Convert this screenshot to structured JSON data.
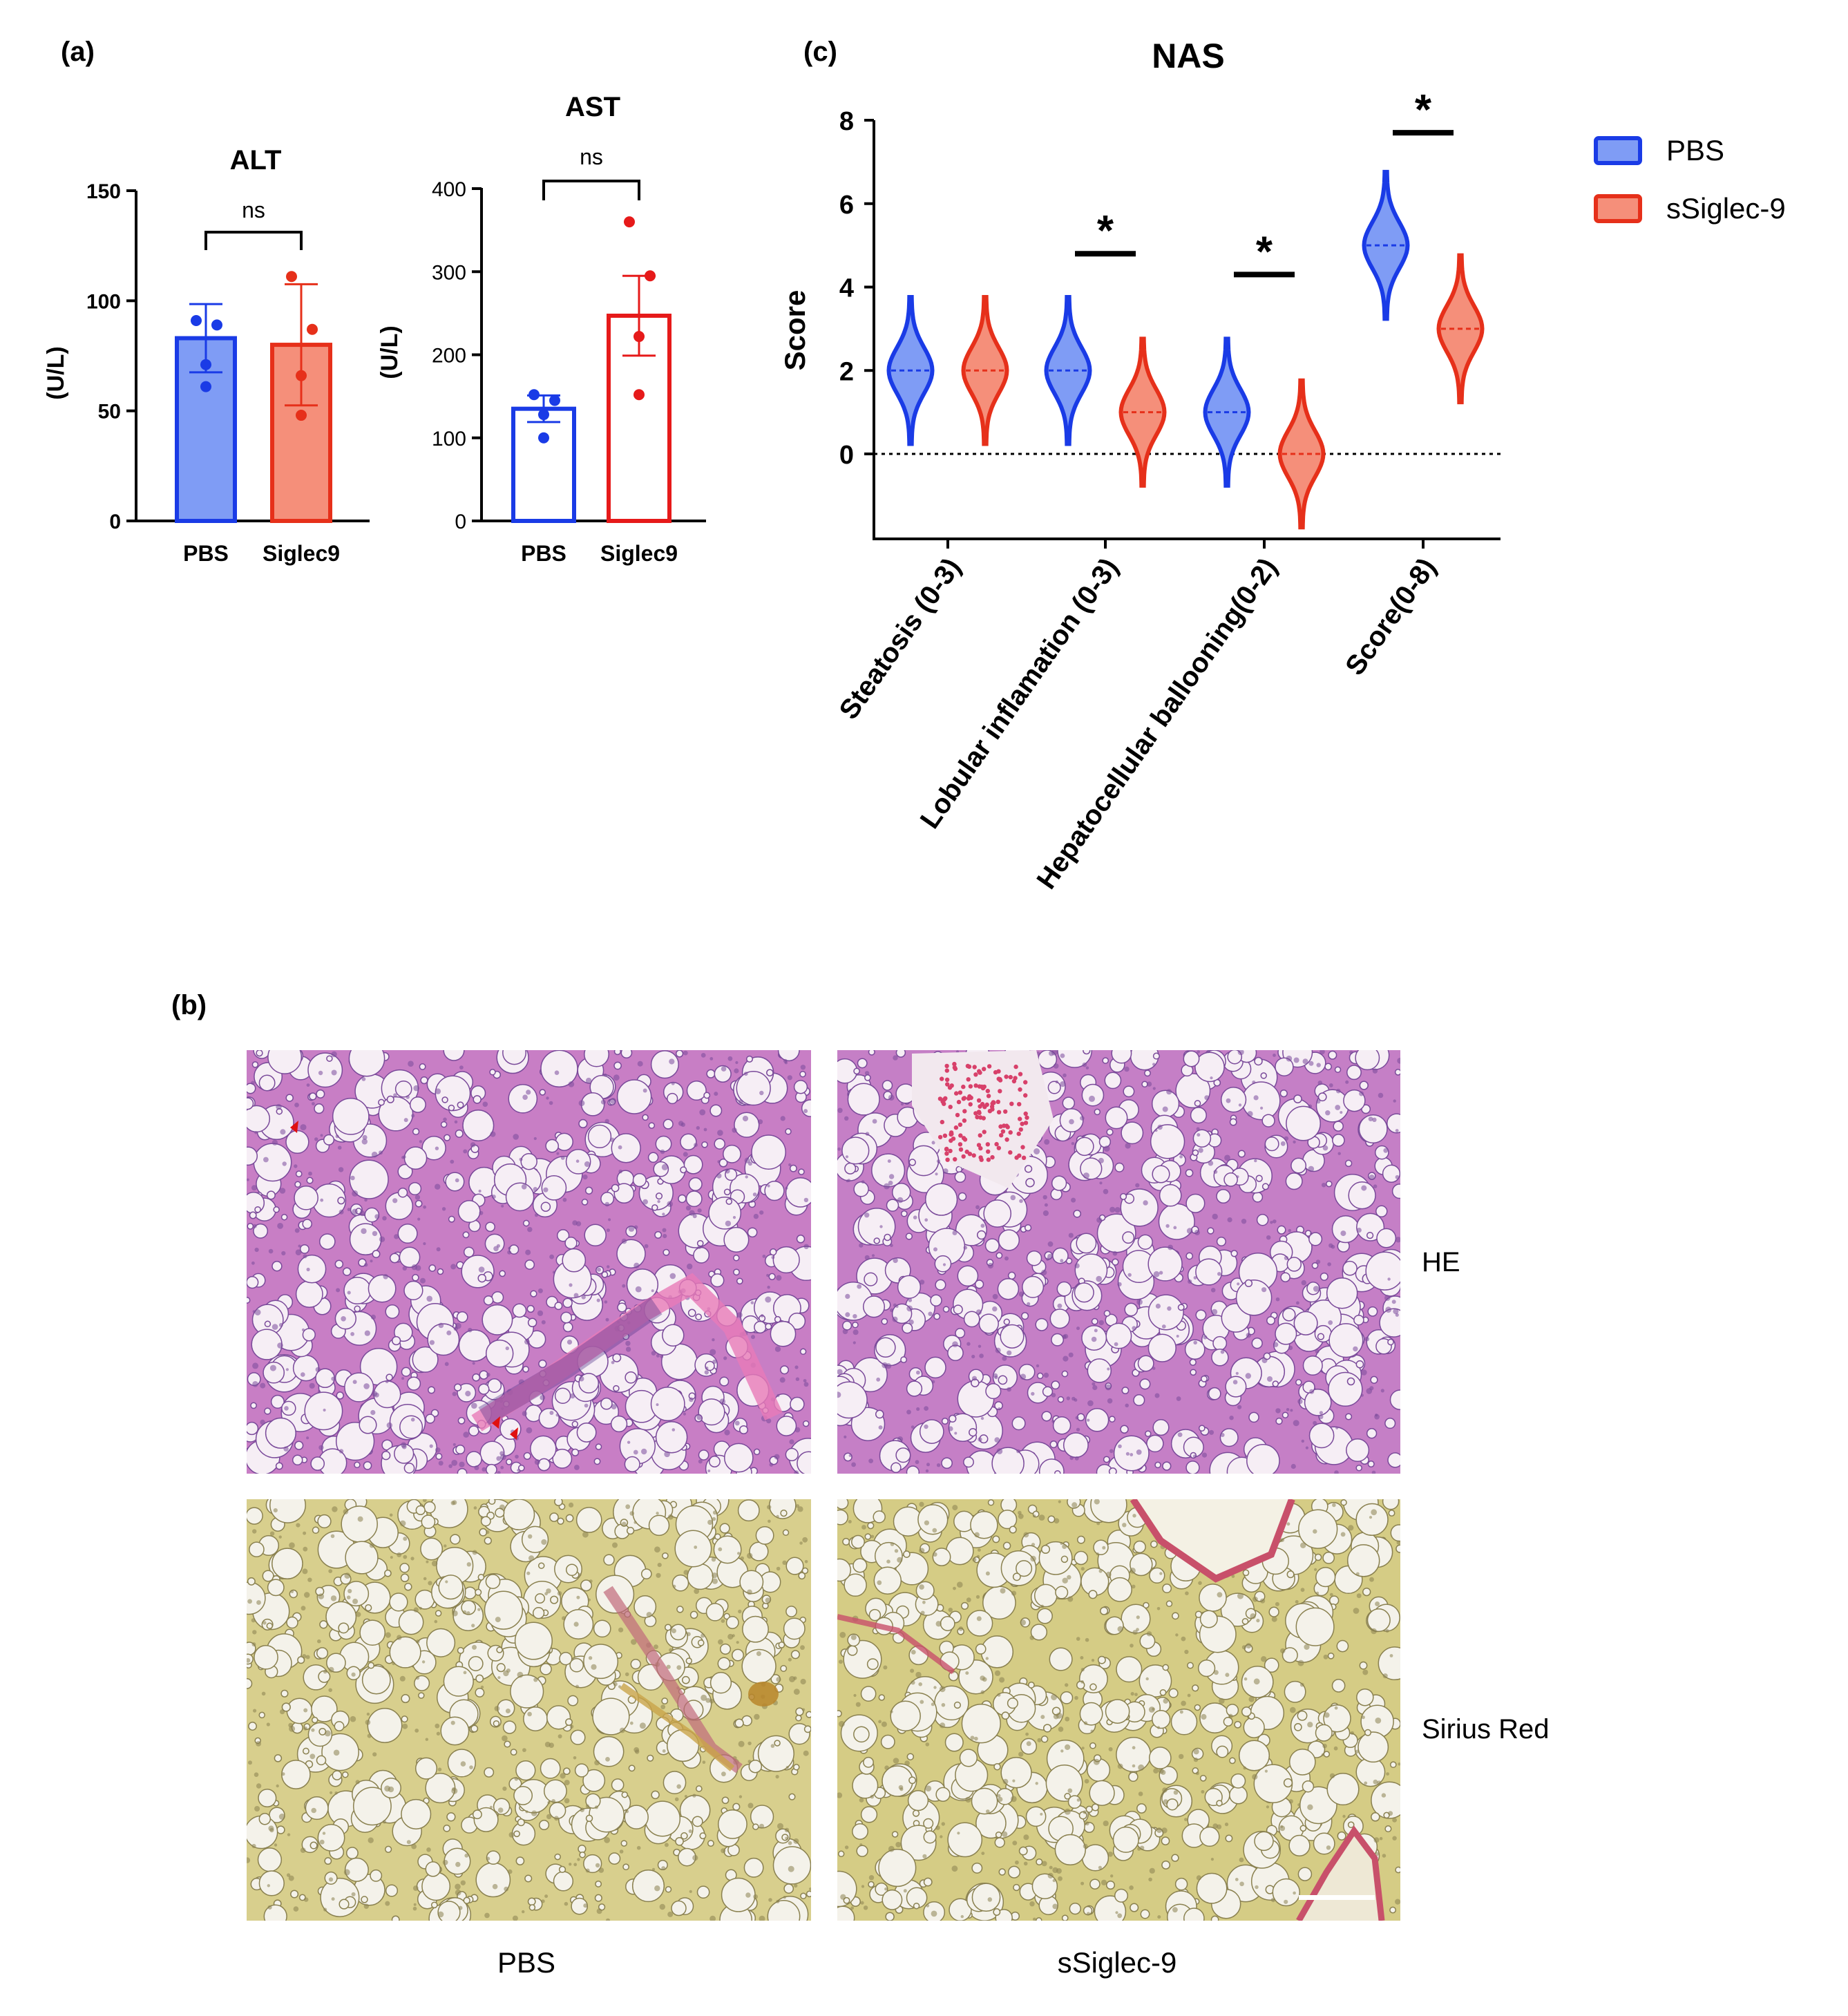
{
  "panels": {
    "a_label": "(a)",
    "b_label": "(b)",
    "c_label": "(c)"
  },
  "colors": {
    "pbs_fill": "#7f9cf5",
    "pbs_line": "#1a3be6",
    "sig_fill": "#f58f7a",
    "sig_line": "#e6301a",
    "ast_sig_line": "#e61a1a",
    "he_tissue": "#c77fc4",
    "sirius_tissue": "#d9d08a"
  },
  "chart_data": [
    {
      "type": "bar",
      "title": "ALT",
      "ylabel": "(U/L)",
      "categories": [
        "PBS",
        "Siglec9"
      ],
      "values": [
        83,
        80
      ],
      "error": [
        15.5,
        27.5
      ],
      "points": [
        [
          91,
          89,
          71,
          61
        ],
        [
          111,
          87,
          66,
          48
        ]
      ],
      "ylim": [
        0,
        150
      ],
      "yticks": [
        0,
        50,
        100,
        150
      ],
      "significance": "ns",
      "bar_style": "filled"
    },
    {
      "type": "bar",
      "title": "AST",
      "ylabel": "(U/L)",
      "categories": [
        "PBS",
        "Siglec9"
      ],
      "values": [
        135,
        247
      ],
      "error": [
        16,
        48
      ],
      "points": [
        [
          152,
          145,
          128,
          100
        ],
        [
          360,
          295,
          222,
          152
        ]
      ],
      "ylim": [
        0,
        400
      ],
      "yticks": [
        0,
        100,
        200,
        300,
        400
      ],
      "significance": "ns",
      "bar_style": "open"
    },
    {
      "type": "violin",
      "title": "NAS",
      "ylabel": "Score",
      "categories": [
        "Steatosis (0-3)",
        "Lobular inflamation (0-3)",
        "Hepatocellular ballooning(0-2)",
        "Score(0-8)"
      ],
      "series": [
        {
          "name": "PBS",
          "medians": [
            2,
            2,
            1,
            5
          ],
          "sd": [
            0.55,
            0.55,
            0.55,
            0.55
          ]
        },
        {
          "name": "sSiglec-9",
          "medians": [
            2,
            1,
            0,
            3
          ],
          "sd": [
            0.55,
            0.55,
            0.55,
            0.55
          ]
        }
      ],
      "ylim": [
        -2,
        8
      ],
      "yticks": [
        0,
        2,
        4,
        6,
        8
      ],
      "significance": [
        "",
        "*",
        "*",
        "*"
      ],
      "legend": "top-right"
    }
  ],
  "micrographs": {
    "row_labels": [
      "HE",
      "Sirius Red"
    ],
    "col_labels": [
      "PBS",
      "sSiglec-9"
    ]
  }
}
